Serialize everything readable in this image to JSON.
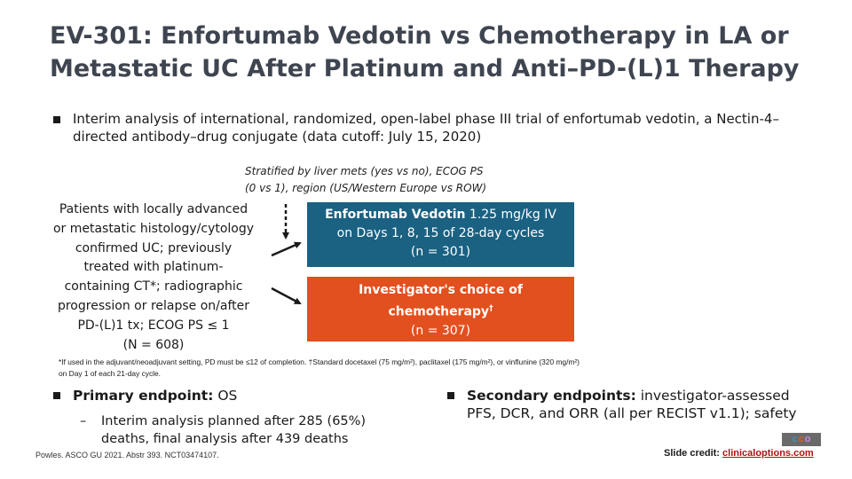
{
  "title": {
    "line1": "EV-301: Enfortumab Vedotin vs Chemotherapy in LA or",
    "line2": "Metastatic UC After Platinum and Anti–PD-(L)1 Therapy"
  },
  "intro": {
    "text": "Interim analysis of international, randomized, open-label phase III trial of enfortumab vedotin, a Nectin-4–directed antibody–drug conjugate (data cutoff: July 15, 2020)"
  },
  "stratification": {
    "line1": "Stratified by liver mets (yes vs no), ECOG PS",
    "line2": "(0 vs 1), region (US/Western Europe vs ROW)"
  },
  "patients": {
    "lines": [
      "Patients with locally advanced",
      "or metastatic histology/cytology",
      "confirmed UC; previously",
      "treated with platinum-",
      "containing CT*; radiographic",
      "progression or relapse on/after",
      "PD-(L)1 tx; ECOG PS ≤ 1",
      "(N = 608)"
    ]
  },
  "arm1": {
    "name": "Enfortumab Vedotin",
    "dose": " 1.25 mg/kg IV",
    "schedule": "on Days 1, 8, 15 of 28-day cycles",
    "n": "(n = 301)"
  },
  "arm2": {
    "line1": "Investigator's choice of",
    "line2": "chemotherapy",
    "mark": "†",
    "n": "(n = 307)"
  },
  "footnote": {
    "line1": "*If used in the adjuvant/neoadjuvant setting, PD must be ≤12 of completion. †Standard docetaxel (75 mg/m²), paclitaxel (175 mg/m²), or vinflunine (320 mg/m²)",
    "line2": "on Day 1 of each 21-day cycle."
  },
  "primary": {
    "label": "Primary endpoint:",
    "value": " OS",
    "sub_dash": "–",
    "sub_text": "Interim analysis planned after 285 (65%) deaths, final analysis after 439 deaths"
  },
  "secondary": {
    "label": "Secondary endpoints:",
    "value": " investigator-assessed PFS, DCR, and ORR (all per RECIST v1.1); safety"
  },
  "citation": "Powles. ASCO GU 2021. Abstr 393. NCT03474107.",
  "logo": {
    "letters": [
      "c",
      "c",
      "o"
    ],
    "colors": [
      "#4a8db0",
      "#e05a1e",
      "#8e4fa0"
    ]
  },
  "credit": {
    "label": "Slide credit: ",
    "link": "clinicaloptions.com"
  },
  "colors": {
    "arm1_bg": "#1a6182",
    "arm2_bg": "#e2501f",
    "title": "#3f4550"
  }
}
